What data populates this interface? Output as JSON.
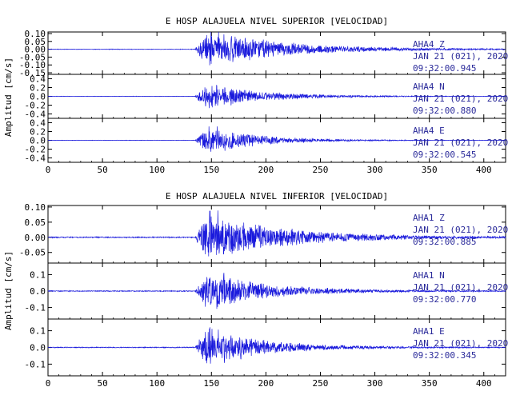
{
  "chart_data": [
    {
      "type": "line",
      "title": "E HOSP ALAJUELA NIVEL SUPERIOR [VELOCIDAD]",
      "ylabel": "Amplitud [cm/s]",
      "xlim": [
        0,
        420
      ],
      "x_ticks": [
        "0",
        "50",
        "100",
        "150",
        "200",
        "250",
        "300",
        "350",
        "400"
      ],
      "grid": false,
      "series": [
        {
          "station": "AHA4",
          "component": "Z",
          "date": "JAN 21 (021), 2020",
          "time": "09:32:00.945",
          "y_ticks": [
            "0.10",
            "0.05",
            "0.00",
            "-0.05",
            "-0.10",
            "-0.15"
          ],
          "ylim": [
            -0.16,
            0.11
          ],
          "onset": 135,
          "duration": 250,
          "peak_pos": 0.1,
          "peak_neg": -0.15,
          "noise": 0.002,
          "seed": 11
        },
        {
          "station": "AHA4",
          "component": "N",
          "date": "JAN 21 (021), 2020",
          "time": "09:32:00.880",
          "y_ticks": [
            "0.4",
            "0.2",
            "0.0",
            "-0.2",
            "-0.4"
          ],
          "ylim": [
            -0.5,
            0.5
          ],
          "onset": 135,
          "duration": 180,
          "peak_pos": 0.4,
          "peak_neg": -0.4,
          "noise": 0.005,
          "seed": 22
        },
        {
          "station": "AHA4",
          "component": "E",
          "date": "JAN 21 (021), 2020",
          "time": "09:32:00.545",
          "y_ticks": [
            "0.4",
            "0.2",
            "0.0",
            "-0.2",
            "-0.4"
          ],
          "ylim": [
            -0.5,
            0.5
          ],
          "onset": 135,
          "duration": 160,
          "peak_pos": 0.45,
          "peak_neg": -0.45,
          "noise": 0.005,
          "seed": 33
        }
      ]
    },
    {
      "type": "line",
      "title": "E HOSP ALAJUELA NIVEL INFERIOR [VELOCIDAD]",
      "ylabel": "Amplitud [cm/s]",
      "xlim": [
        0,
        420
      ],
      "x_ticks": [
        "0",
        "50",
        "100",
        "150",
        "200",
        "250",
        "300",
        "350",
        "400"
      ],
      "grid": false,
      "series": [
        {
          "station": "AHA1",
          "component": "Z",
          "date": "JAN 21 (021), 2020",
          "time": "09:32:00.885",
          "y_ticks": [
            "0.10",
            "0.05",
            "0.00",
            "-0.05"
          ],
          "ylim": [
            -0.085,
            0.105
          ],
          "onset": 135,
          "duration": 250,
          "peak_pos": 0.1,
          "peak_neg": -0.08,
          "noise": 0.002,
          "seed": 44
        },
        {
          "station": "AHA1",
          "component": "N",
          "date": "JAN 21 (021), 2020",
          "time": "09:32:00.770",
          "y_ticks": [
            "0.1",
            "0.0",
            "-0.1"
          ],
          "ylim": [
            -0.17,
            0.17
          ],
          "onset": 135,
          "duration": 200,
          "peak_pos": 0.15,
          "peak_neg": -0.15,
          "noise": 0.003,
          "seed": 55
        },
        {
          "station": "AHA1",
          "component": "E",
          "date": "JAN 21 (021), 2020",
          "time": "09:32:00.345",
          "y_ticks": [
            "0.1",
            "0.0",
            "-0.1"
          ],
          "ylim": [
            -0.17,
            0.17
          ],
          "onset": 135,
          "duration": 180,
          "peak_pos": 0.16,
          "peak_neg": -0.16,
          "noise": 0.003,
          "seed": 66
        }
      ]
    }
  ],
  "colors": {
    "trace": "#1a1adc",
    "axes": "#000000",
    "text": "#000000",
    "station_label": "#2a2a9a"
  }
}
